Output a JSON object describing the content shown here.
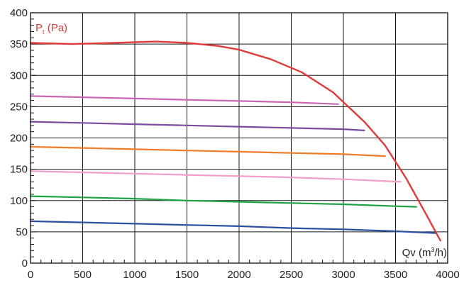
{
  "chart_data": {
    "type": "line",
    "title": "",
    "xlabel": "Qv (m³/h)",
    "xlabel_parts": {
      "base": "Qv (m",
      "sup": "3",
      "tail": "/h)"
    },
    "ylabel": "Pt (Pa)",
    "ylabel_parts": {
      "base": "P",
      "sub": "t",
      "tail": " (Pa)"
    },
    "xlim": [
      0,
      4000
    ],
    "ylim": [
      0,
      400
    ],
    "x_ticks": [
      0,
      500,
      1000,
      1500,
      2000,
      2500,
      3000,
      3500,
      4000
    ],
    "y_ticks": [
      0,
      50,
      100,
      150,
      200,
      250,
      300,
      350,
      400
    ],
    "grid": true,
    "series": [
      {
        "color": "#e03a3a",
        "width": 2.4,
        "points": [
          [
            0,
            352
          ],
          [
            400,
            350
          ],
          [
            800,
            352
          ],
          [
            1200,
            354
          ],
          [
            1500,
            352
          ],
          [
            1800,
            347
          ],
          [
            2000,
            341
          ],
          [
            2300,
            326
          ],
          [
            2600,
            305
          ],
          [
            2900,
            273
          ],
          [
            3200,
            226
          ],
          [
            3400,
            188
          ],
          [
            3600,
            136
          ],
          [
            3800,
            76
          ],
          [
            3930,
            36
          ]
        ]
      },
      {
        "color": "#c966b4",
        "width": 2.2,
        "points": [
          [
            0,
            267
          ],
          [
            500,
            265
          ],
          [
            1000,
            263
          ],
          [
            1500,
            261
          ],
          [
            2000,
            259
          ],
          [
            2500,
            257
          ],
          [
            2950,
            254
          ]
        ]
      },
      {
        "color": "#7a4b9e",
        "width": 2.2,
        "points": [
          [
            0,
            226
          ],
          [
            500,
            224
          ],
          [
            1000,
            222
          ],
          [
            1500,
            220
          ],
          [
            2000,
            218
          ],
          [
            2500,
            216
          ],
          [
            3000,
            214
          ],
          [
            3200,
            212
          ]
        ]
      },
      {
        "color": "#f07b28",
        "width": 2.2,
        "points": [
          [
            0,
            186
          ],
          [
            500,
            184
          ],
          [
            1000,
            182
          ],
          [
            1500,
            180
          ],
          [
            2000,
            178
          ],
          [
            2500,
            176
          ],
          [
            3000,
            174
          ],
          [
            3400,
            171
          ]
        ]
      },
      {
        "color": "#f29ec8",
        "width": 2.2,
        "points": [
          [
            0,
            147
          ],
          [
            500,
            145
          ],
          [
            1000,
            143
          ],
          [
            1500,
            141
          ],
          [
            2000,
            139
          ],
          [
            2500,
            137
          ],
          [
            3000,
            134
          ],
          [
            3550,
            130
          ]
        ]
      },
      {
        "color": "#1ea344",
        "width": 2.2,
        "points": [
          [
            0,
            107
          ],
          [
            500,
            105
          ],
          [
            1000,
            103
          ],
          [
            1500,
            100
          ],
          [
            2000,
            98
          ],
          [
            2500,
            96
          ],
          [
            3000,
            94
          ],
          [
            3500,
            91
          ],
          [
            3700,
            90
          ]
        ]
      },
      {
        "color": "#2a4f9c",
        "width": 2.2,
        "points": [
          [
            0,
            67
          ],
          [
            500,
            65
          ],
          [
            1000,
            63
          ],
          [
            1500,
            61
          ],
          [
            2000,
            59
          ],
          [
            2500,
            56
          ],
          [
            3000,
            54
          ],
          [
            3500,
            51
          ],
          [
            3880,
            48
          ]
        ]
      }
    ]
  }
}
